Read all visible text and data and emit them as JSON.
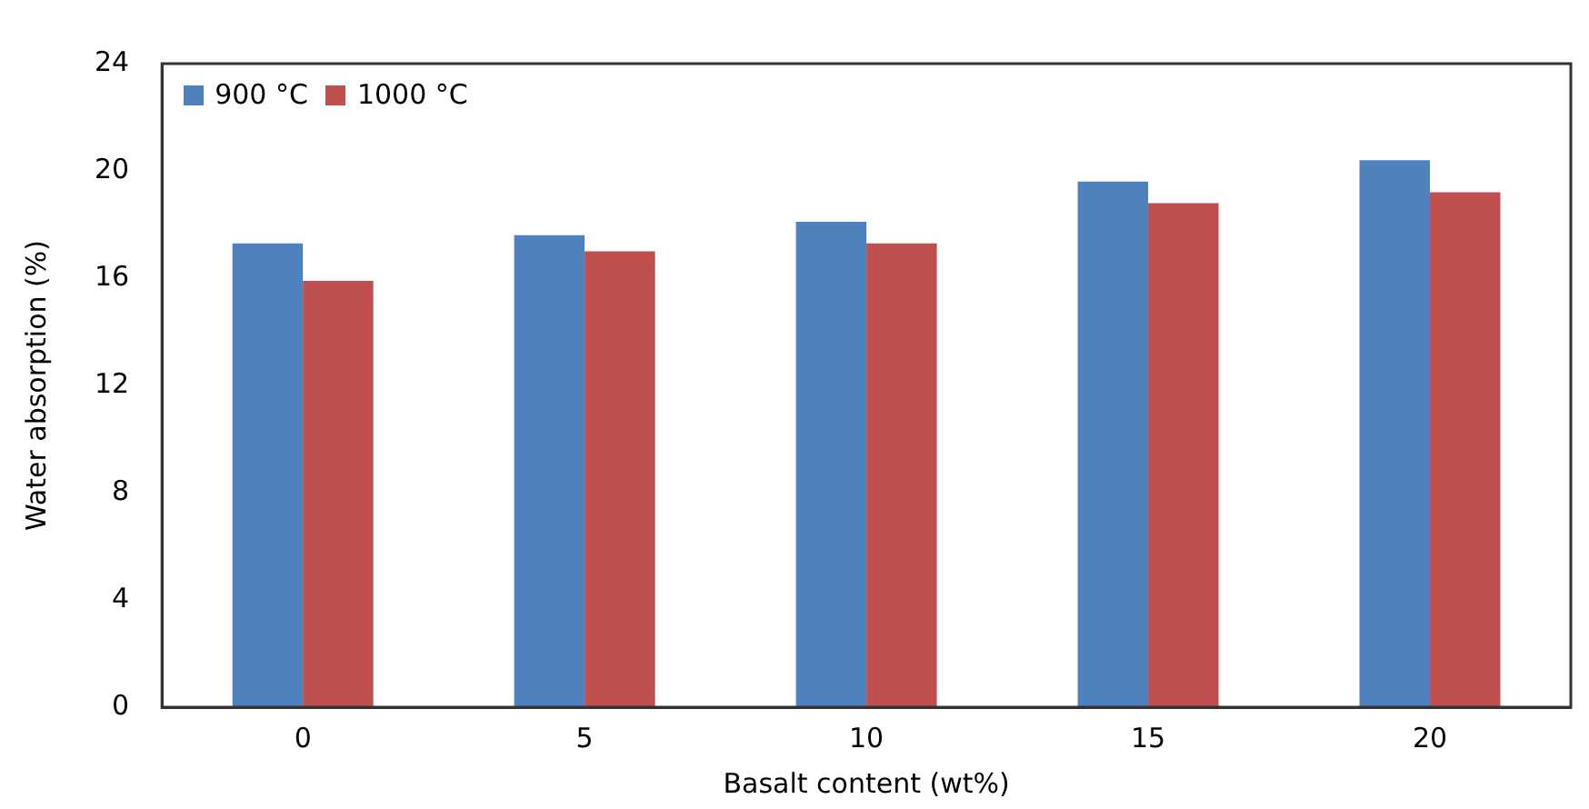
{
  "chart_data": {
    "type": "bar",
    "xlabel": "Basalt content (wt%)",
    "ylabel": "Water absorption (%)",
    "categories": [
      "0",
      "5",
      "10",
      "15",
      "20"
    ],
    "series": [
      {
        "name": "900 °C",
        "color": "#4f81bd",
        "values": [
          17.3,
          17.6,
          18.1,
          19.6,
          20.4
        ]
      },
      {
        "name": "1000 °C",
        "color": "#c0504d",
        "values": [
          15.9,
          17.0,
          17.3,
          18.8,
          19.2
        ]
      }
    ],
    "ylim": [
      0,
      24
    ],
    "yticks": [
      0,
      4,
      8,
      12,
      16,
      20,
      24
    ],
    "grid": false,
    "legend": "top left"
  }
}
